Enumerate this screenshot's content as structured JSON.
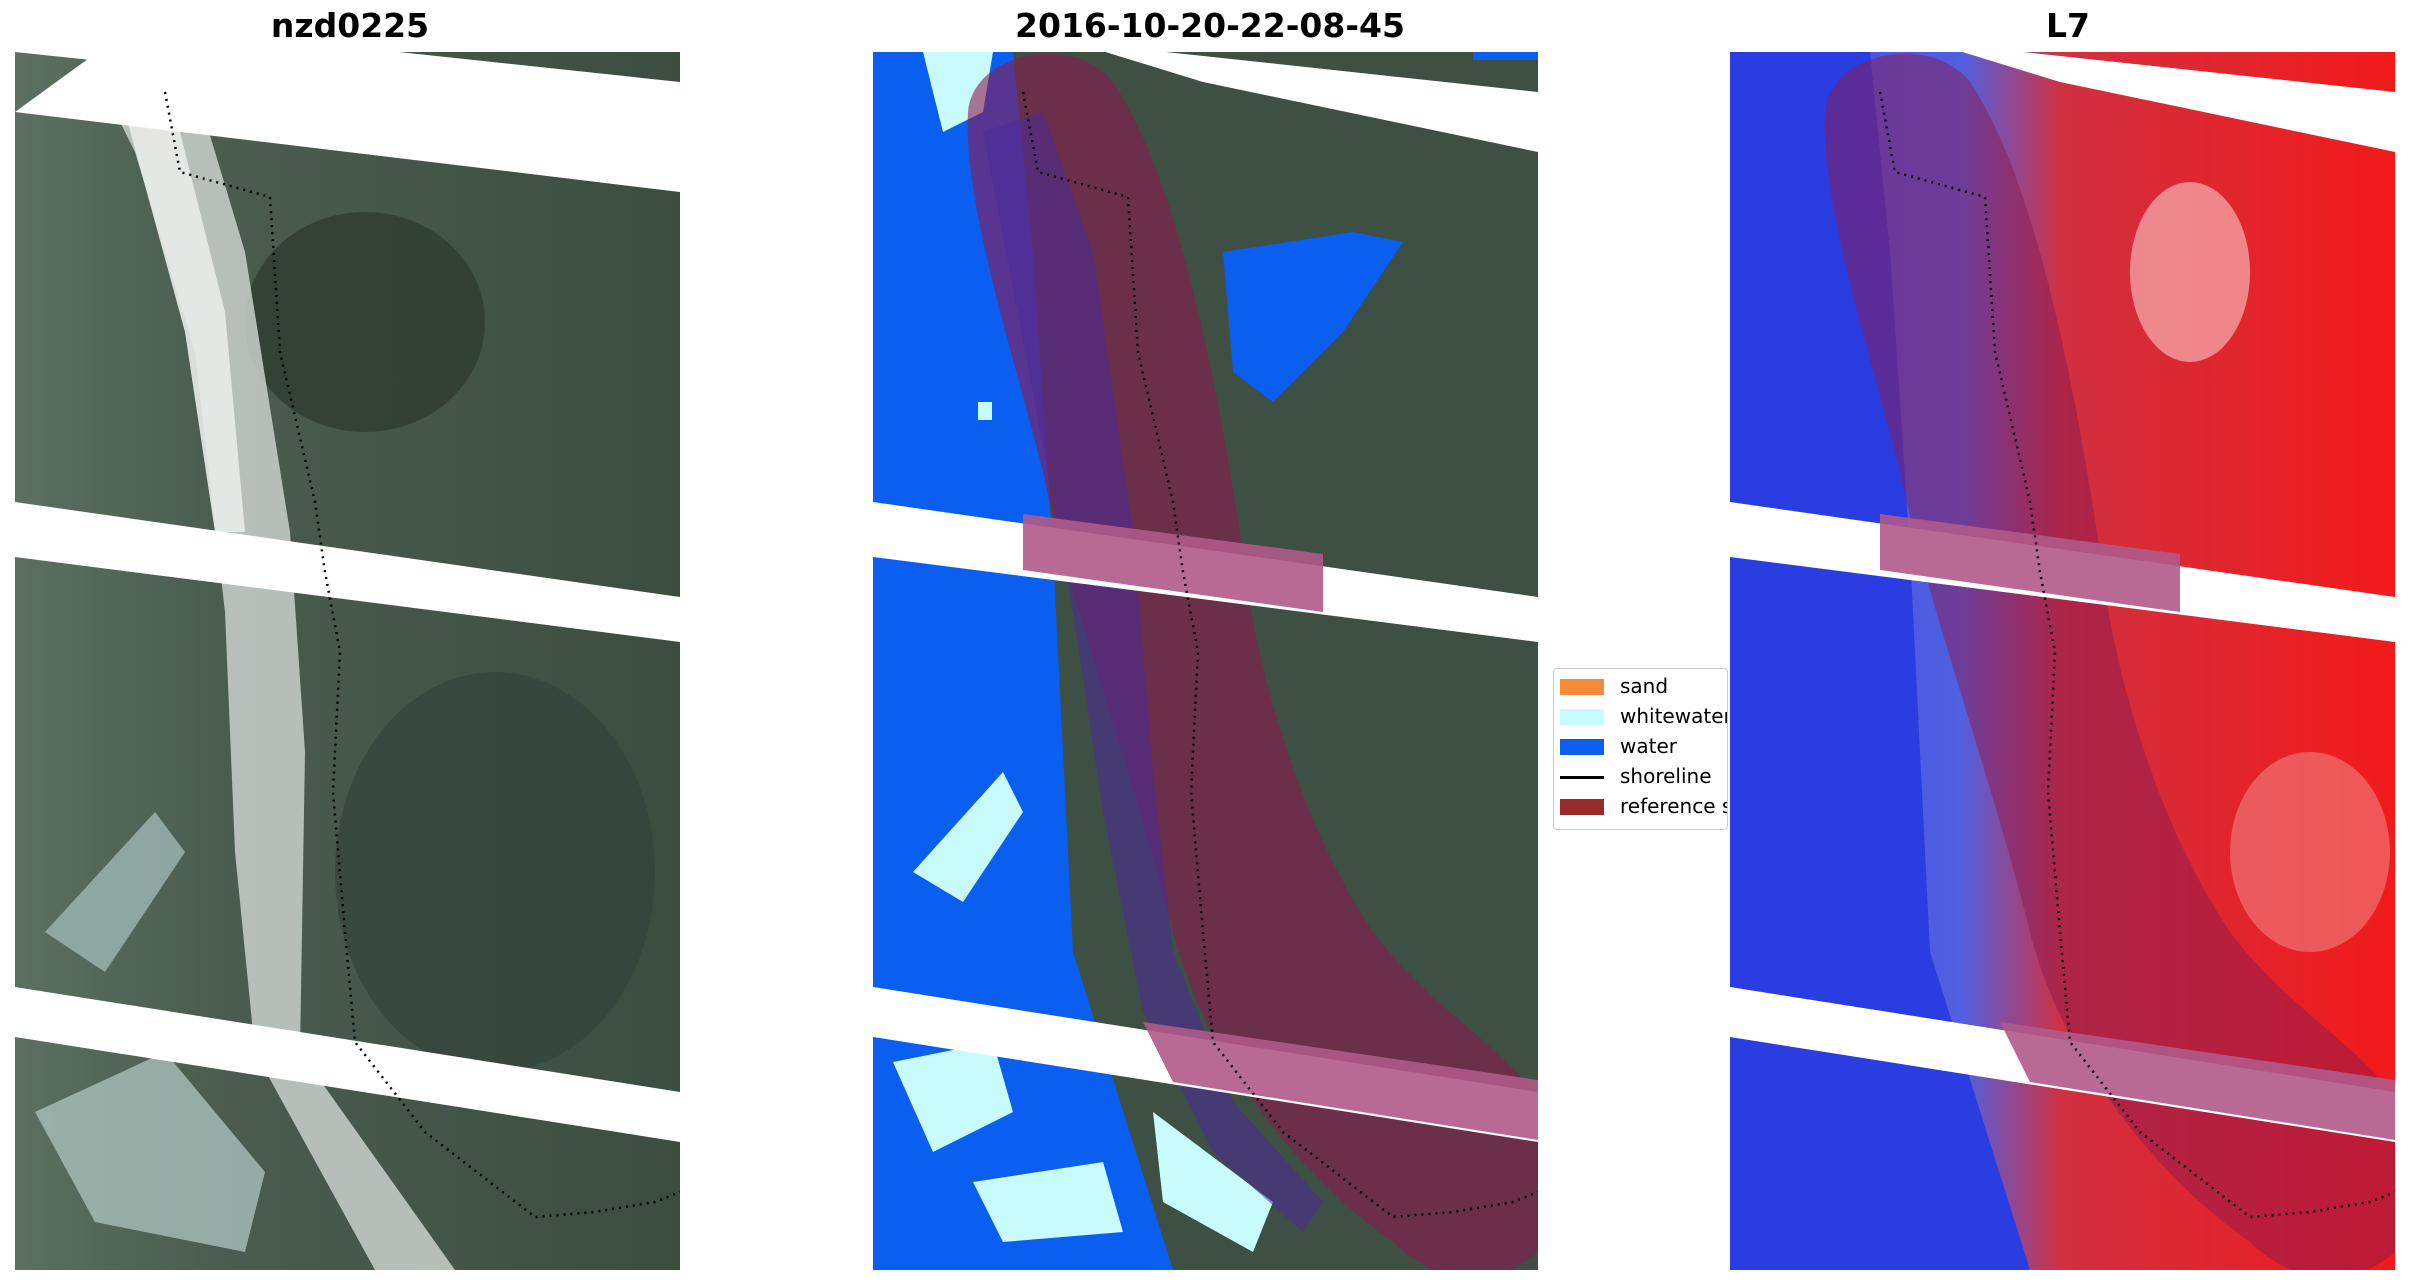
{
  "panels": [
    {
      "title": "nzd0225",
      "kind": "rgb-image"
    },
    {
      "title": "2016-10-20-22-08-45",
      "kind": "classified-image"
    },
    {
      "title": "L7",
      "kind": "index-image"
    }
  ],
  "legend": {
    "items": [
      {
        "label": "sand",
        "color": "#f58a3a",
        "kind": "patch"
      },
      {
        "label": "whitewater",
        "color": "#c8fbfb",
        "kind": "patch"
      },
      {
        "label": "water",
        "color": "#0a5ef0",
        "kind": "patch"
      },
      {
        "label": "shoreline",
        "color": "#000000",
        "kind": "line"
      },
      {
        "label": "reference shoreline buffer",
        "color": "#9b2a2a",
        "kind": "patch"
      }
    ]
  },
  "colors": {
    "vegetation": "#3e4f43",
    "sand_bright": "#d7dbd6",
    "water_class": "#0a5ef0",
    "whitewater_class": "#c8fbfb",
    "index_negative": "#2a3de0",
    "index_positive": "#f21a1a",
    "buffer_overlay": "#8b1a50"
  }
}
